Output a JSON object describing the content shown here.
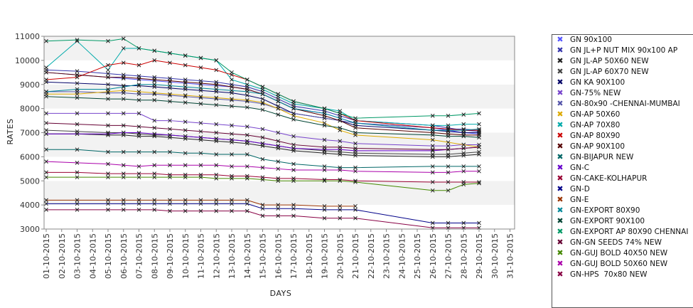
{
  "chart_data": {
    "type": "line",
    "xlabel": "DAYS",
    "ylabel": "RATES",
    "ylim": [
      3000,
      11000
    ],
    "yticks": [
      3000,
      4000,
      5000,
      6000,
      7000,
      8000,
      9000,
      10000,
      11000
    ],
    "grid": "alternating horizontal bands",
    "legend_position": "right",
    "categories": [
      "01-10-2015",
      "02-10-2015",
      "03-10-2015",
      "04-10-2015",
      "05-10-2015",
      "06-10-2015",
      "07-10-2015",
      "08-10-2015",
      "09-10-2015",
      "10-10-2015",
      "11-10-2015",
      "12-10-2015",
      "13-10-2015",
      "14-10-2015",
      "15-10-2015",
      "16-10-2015",
      "17-10-2015",
      "18-10-2015",
      "19-10-2015",
      "20-10-2015",
      "21-10-2015",
      "22-10-2015",
      "23-10-2015",
      "24-10-2015",
      "25-10-2015",
      "26-10-2015",
      "27-10-2015",
      "28-10-2015",
      "29-10-2015",
      "30-10-2015",
      "31-10-2015"
    ],
    "series": [
      {
        "name": "GN 90x100",
        "color": "#5555ff",
        "values": [
          9500,
          null,
          9400,
          null,
          9300,
          9250,
          9200,
          9150,
          9100,
          9050,
          9000,
          8950,
          8900,
          8800,
          8600,
          8300,
          8000,
          null,
          7800,
          7600,
          7400,
          null,
          null,
          null,
          null,
          7200,
          7100,
          7000,
          6950,
          null,
          null
        ]
      },
      {
        "name": "GN JL+P NUT MIX 90x100 AP",
        "color": "#3333aa",
        "values": [
          9600,
          null,
          9550,
          null,
          9450,
          9400,
          9350,
          9300,
          9250,
          9200,
          9150,
          9100,
          9000,
          8900,
          8700,
          8400,
          8100,
          null,
          7900,
          7700,
          7500,
          null,
          null,
          null,
          null,
          7300,
          7200,
          7100,
          7050,
          null,
          null
        ]
      },
      {
        "name": "GN JL-AP 50X60 NEW",
        "color": "#222222",
        "values": [
          6950,
          null,
          6950,
          null,
          6900,
          6900,
          6850,
          6850,
          6800,
          6750,
          6700,
          6650,
          6600,
          6550,
          6450,
          6350,
          6250,
          null,
          6150,
          6100,
          6050,
          null,
          null,
          null,
          null,
          6000,
          6000,
          6050,
          6100,
          null,
          null
        ]
      },
      {
        "name": "GN JL-AP 60X70 NEW",
        "color": "#444444",
        "values": [
          7100,
          null,
          7050,
          null,
          7000,
          7000,
          6950,
          6900,
          6900,
          6850,
          6800,
          6750,
          6700,
          6650,
          6550,
          6450,
          6350,
          null,
          6250,
          6200,
          6150,
          null,
          null,
          null,
          null,
          6100,
          6100,
          6150,
          6200,
          null,
          null
        ]
      },
      {
        "name": "GN KA 90X100",
        "color": "#000066",
        "values": [
          9100,
          null,
          9050,
          null,
          9000,
          8950,
          8950,
          8900,
          8850,
          8800,
          8750,
          8700,
          8650,
          8550,
          8400,
          8100,
          7800,
          null,
          7600,
          7500,
          7300,
          null,
          null,
          null,
          null,
          7100,
          7050,
          7000,
          7000,
          null,
          null
        ]
      },
      {
        "name": "GN-75% NEW",
        "color": "#7744cc",
        "values": [
          7800,
          null,
          7800,
          null,
          7800,
          7800,
          7800,
          7500,
          7500,
          7450,
          7400,
          7350,
          7300,
          7250,
          7150,
          7000,
          6850,
          null,
          6700,
          6650,
          6550,
          null,
          null,
          null,
          null,
          6450,
          6450,
          6500,
          6500,
          null,
          null
        ]
      },
      {
        "name": "GN-80x90 -CHENNAI-MUMBAI",
        "color": "#5555aa",
        "values": [
          8700,
          null,
          8700,
          null,
          8650,
          8650,
          8600,
          8600,
          8550,
          8500,
          8450,
          8400,
          8350,
          8300,
          8200,
          8000,
          7800,
          null,
          7600,
          7500,
          7400,
          null,
          null,
          null,
          null,
          7200,
          7150,
          7150,
          7100,
          null,
          null
        ]
      },
      {
        "name": "GN-AP 50X60",
        "color": "#ddaa00",
        "values": [
          8600,
          null,
          8600,
          null,
          8700,
          8750,
          8700,
          8650,
          8600,
          8550,
          8500,
          8450,
          8400,
          8350,
          8250,
          8000,
          7700,
          null,
          7400,
          7100,
          6900,
          null,
          null,
          null,
          null,
          6700,
          6600,
          6500,
          6400,
          null,
          null
        ]
      },
      {
        "name": "GN-AP 70X80",
        "color": "#00aaaa",
        "values": [
          9700,
          null,
          10800,
          null,
          9600,
          10500,
          10500,
          10400,
          10300,
          10200,
          10100,
          10000,
          9200,
          9000,
          8800,
          8500,
          8200,
          null,
          8000,
          7900,
          7500,
          null,
          null,
          null,
          null,
          7300,
          7300,
          7350,
          7350,
          null,
          null
        ]
      },
      {
        "name": "GN-AP 80X90",
        "color": "#cc0000",
        "values": [
          9200,
          null,
          9300,
          null,
          9800,
          9900,
          9800,
          10000,
          9900,
          9800,
          9700,
          9600,
          9400,
          9200,
          8900,
          8600,
          8300,
          null,
          8000,
          7800,
          7500,
          null,
          null,
          null,
          null,
          7200,
          7150,
          7100,
          7100,
          null,
          null
        ]
      },
      {
        "name": "GN-AP 90X100",
        "color": "#550000",
        "values": [
          9500,
          null,
          9400,
          null,
          9300,
          9300,
          9250,
          9200,
          9150,
          9100,
          9050,
          9000,
          8900,
          8800,
          8600,
          8300,
          8000,
          null,
          7700,
          7500,
          7200,
          null,
          null,
          null,
          null,
          7000,
          6950,
          6900,
          6900,
          null,
          null
        ]
      },
      {
        "name": "GN-BIJAPUR NEW",
        "color": "#006666",
        "values": [
          6300,
          null,
          6300,
          null,
          6200,
          6200,
          6200,
          6200,
          6200,
          6150,
          6150,
          6100,
          6100,
          6100,
          5900,
          5800,
          5700,
          null,
          5600,
          5550,
          5550,
          null,
          null,
          null,
          null,
          5600,
          5600,
          5600,
          5600,
          null,
          null
        ]
      },
      {
        "name": "GN-C",
        "color": "#6600cc",
        "values": [
          6950,
          null,
          6950,
          null,
          6950,
          7000,
          7000,
          6950,
          6900,
          6850,
          6800,
          6750,
          6700,
          6650,
          6550,
          6450,
          6350,
          null,
          6300,
          6300,
          6250,
          null,
          null,
          null,
          null,
          6250,
          6300,
          6350,
          6400,
          null,
          null
        ]
      },
      {
        "name": "GN-CAKE-KOLHAPUR",
        "color": "#990033",
        "values": [
          5350,
          null,
          5350,
          null,
          5300,
          5300,
          5300,
          5300,
          5250,
          5250,
          5250,
          5250,
          5200,
          5200,
          5150,
          5100,
          5100,
          null,
          5050,
          5050,
          5000,
          null,
          null,
          null,
          null,
          4950,
          4950,
          4950,
          4950,
          null,
          null
        ]
      },
      {
        "name": "GN-D",
        "color": "#000088",
        "values": [
          4050,
          null,
          4050,
          null,
          4050,
          4050,
          4050,
          4050,
          4050,
          4050,
          4050,
          4050,
          4050,
          4050,
          3850,
          3850,
          3850,
          null,
          3800,
          3800,
          3800,
          null,
          null,
          null,
          null,
          3250,
          3250,
          3250,
          3250,
          null,
          null
        ]
      },
      {
        "name": "GN-E",
        "color": "#993300",
        "values": [
          4200,
          null,
          4200,
          null,
          4200,
          4200,
          4200,
          4200,
          4200,
          4200,
          4200,
          4200,
          4200,
          4200,
          4000,
          4000,
          4000,
          null,
          3950,
          3950,
          3950,
          null,
          null,
          null,
          null,
          null,
          null,
          null,
          null,
          null,
          null
        ]
      },
      {
        "name": "GN-EXPORT 80X90",
        "color": "#008899",
        "values": [
          8700,
          null,
          8800,
          null,
          8800,
          8900,
          9000,
          9000,
          8950,
          8900,
          8850,
          8800,
          8750,
          8700,
          8600,
          8300,
          8000,
          null,
          7800,
          7600,
          7400,
          null,
          null,
          null,
          null,
          7100,
          7100,
          7100,
          7150,
          null,
          null
        ]
      },
      {
        "name": "GN-EXPORT 90X100",
        "color": "#004433",
        "values": [
          8500,
          null,
          8450,
          null,
          8400,
          8400,
          8350,
          8350,
          8300,
          8250,
          8200,
          8150,
          8100,
          8050,
          7950,
          7750,
          7550,
          null,
          7300,
          7200,
          7000,
          null,
          null,
          null,
          null,
          6900,
          6850,
          6850,
          6800,
          null,
          null
        ]
      },
      {
        "name": "GN-EXPORT AP 80X90 CHENNAI",
        "color": "#009966",
        "values": [
          10800,
          null,
          10850,
          null,
          10800,
          10900,
          10500,
          10400,
          10300,
          10200,
          10100,
          10000,
          9500,
          9200,
          8900,
          8600,
          8300,
          null,
          8000,
          7800,
          7600,
          null,
          null,
          null,
          null,
          7700,
          7700,
          7750,
          7800,
          null,
          null
        ]
      },
      {
        "name": "GN-GN SEEDS 74% NEW",
        "color": "#660033",
        "values": [
          7400,
          null,
          7350,
          null,
          7300,
          7300,
          7250,
          7200,
          7150,
          7100,
          7050,
          7000,
          6950,
          6900,
          6800,
          6650,
          6500,
          null,
          6400,
          6400,
          6350,
          null,
          null,
          null,
          null,
          6300,
          6300,
          6350,
          6400,
          null,
          null
        ]
      },
      {
        "name": "GN-GUJ BOLD 40X50 NEW",
        "color": "#448800",
        "values": [
          5150,
          null,
          5150,
          null,
          5150,
          5150,
          5150,
          5150,
          5150,
          5150,
          5150,
          5100,
          5100,
          5100,
          5050,
          5000,
          5000,
          null,
          5000,
          5000,
          4950,
          null,
          null,
          null,
          null,
          4600,
          4600,
          4850,
          4900,
          null,
          null
        ]
      },
      {
        "name": "GN-GUJ BOLD 50X60 NEW",
        "color": "#aa00aa",
        "values": [
          5800,
          null,
          5750,
          null,
          5700,
          5650,
          5600,
          5650,
          5650,
          5650,
          5650,
          5650,
          5600,
          5600,
          5550,
          5500,
          5450,
          null,
          5450,
          5450,
          5400,
          null,
          null,
          null,
          null,
          5350,
          5350,
          5400,
          5400,
          null,
          null
        ]
      },
      {
        "name": "GN-HPS  70x80 NEW",
        "color": "#880044",
        "values": [
          3800,
          null,
          3800,
          null,
          3800,
          3800,
          3800,
          3800,
          3750,
          3750,
          3750,
          3750,
          3750,
          3750,
          3550,
          3550,
          3550,
          null,
          3450,
          3450,
          3450,
          null,
          null,
          null,
          null,
          3050,
          3050,
          3050,
          3050,
          null,
          null
        ]
      }
    ]
  }
}
